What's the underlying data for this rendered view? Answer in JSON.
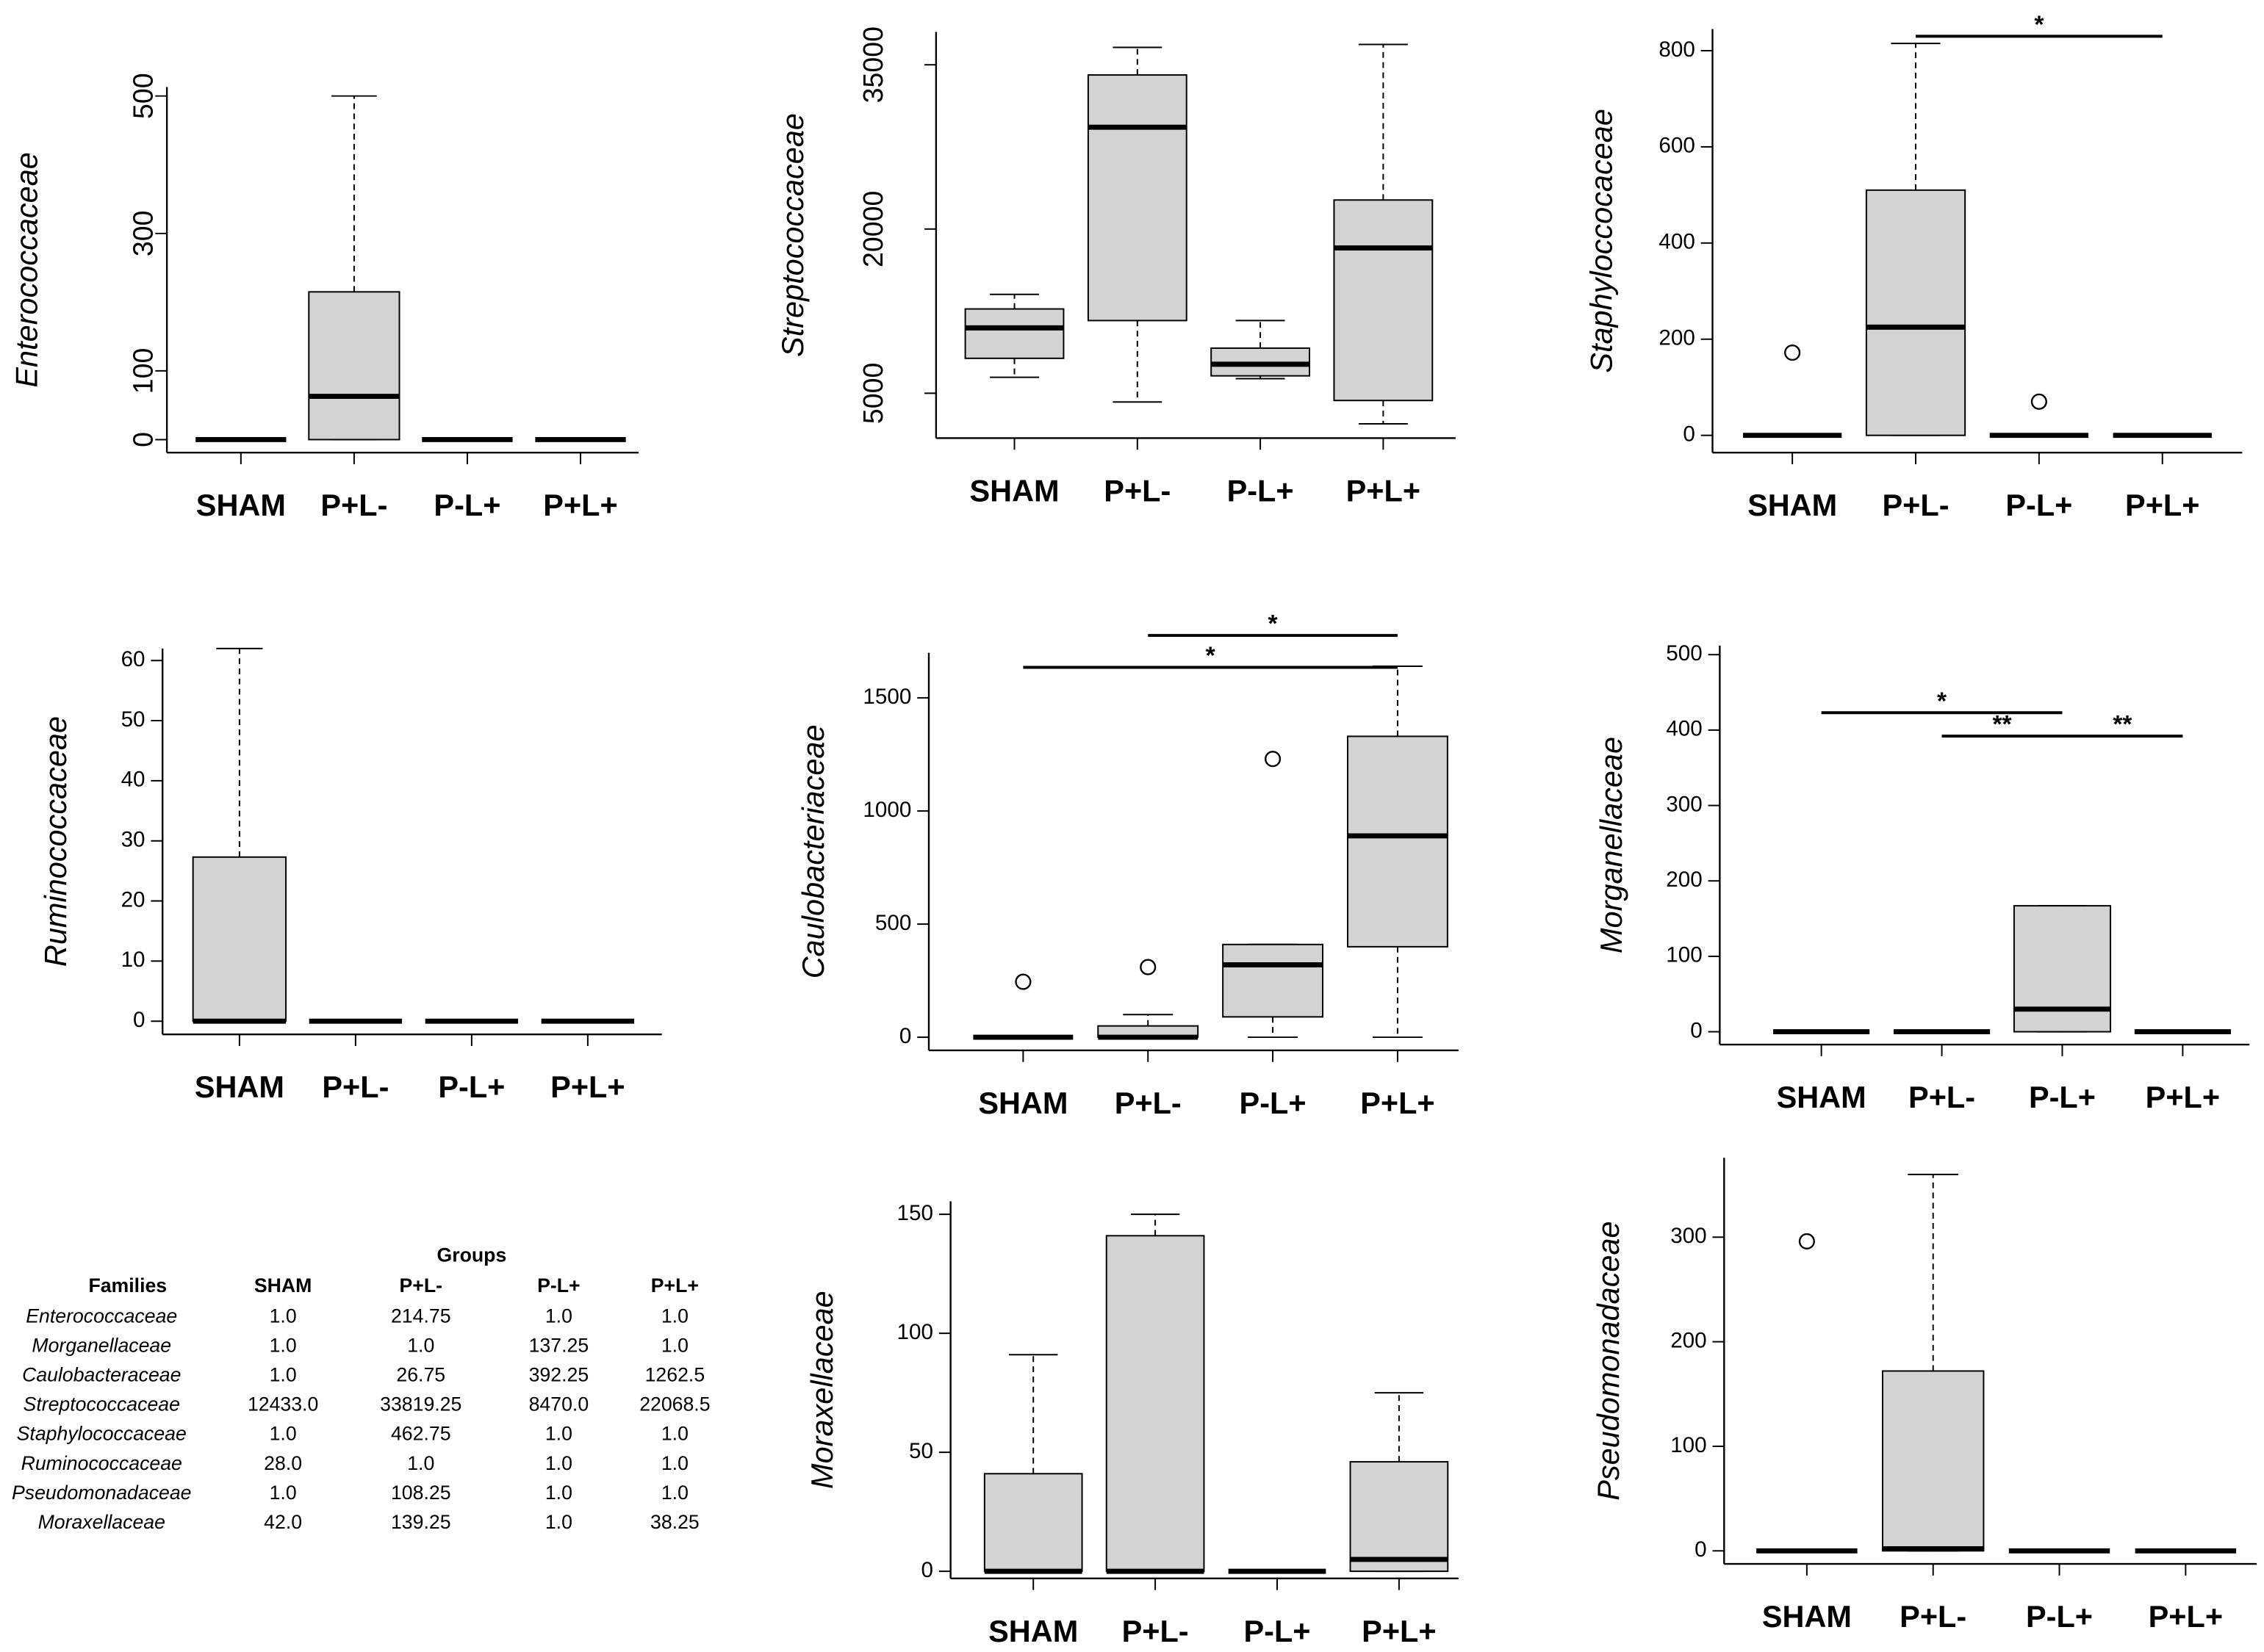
{
  "chart_data": [
    {
      "type": "box",
      "ylabel": "Enterococcaceae",
      "categories": [
        "SHAM",
        "P+L-",
        "P-L+",
        "P+L+"
      ],
      "ylim": [
        -19,
        513
      ],
      "yticks": [
        0,
        100,
        300,
        500
      ],
      "boxes": [
        {
          "min": 0,
          "q1": 0,
          "median": 0,
          "q3": 0,
          "max": 0,
          "outliers": []
        },
        {
          "min": 0,
          "q1": 0,
          "median": 63,
          "q3": 215,
          "max": 500,
          "outliers": []
        },
        {
          "min": 0,
          "q1": 0,
          "median": 0,
          "q3": 0,
          "max": 0,
          "outliers": []
        },
        {
          "min": 0,
          "q1": 0,
          "median": 0,
          "q3": 0,
          "max": 0,
          "outliers": []
        }
      ],
      "annotations": []
    },
    {
      "type": "box",
      "ylabel": "Streptococcaceae",
      "categories": [
        "SHAM",
        "P+L-",
        "P-L+",
        "P+L+"
      ],
      "ylim": [
        900,
        38000
      ],
      "yticks": [
        5000,
        20000,
        35000
      ],
      "boxes": [
        {
          "min": 6460,
          "q1": 8190,
          "median": 10970,
          "q3": 12700,
          "max": 14030,
          "outliers": []
        },
        {
          "min": 4200,
          "q1": 11640,
          "median": 29300,
          "q3": 34070,
          "max": 36590,
          "outliers": []
        },
        {
          "min": 6330,
          "q1": 6590,
          "median": 7650,
          "q3": 9120,
          "max": 11640,
          "outliers": []
        },
        {
          "min": 2210,
          "q1": 4340,
          "median": 18270,
          "q3": 22650,
          "max": 36860,
          "outliers": []
        }
      ],
      "annotations": []
    },
    {
      "type": "box",
      "ylabel": "Staphyloccocaceae",
      "categories": [
        "SHAM",
        "P+L-",
        "P-L+",
        "P+L+"
      ],
      "ylim": [
        -36,
        845
      ],
      "yticks": [
        0,
        200,
        400,
        600,
        800
      ],
      "boxes": [
        {
          "min": 0,
          "q1": 0,
          "median": 0,
          "q3": 0,
          "max": 0,
          "outliers": [
            172
          ]
        },
        {
          "min": 0,
          "q1": 0,
          "median": 225,
          "q3": 510,
          "max": 815,
          "outliers": []
        },
        {
          "min": 0,
          "q1": 0,
          "median": 0,
          "q3": 0,
          "max": 0,
          "outliers": [
            70
          ]
        },
        {
          "min": 0,
          "q1": 0,
          "median": 0,
          "q3": 0,
          "max": 0,
          "outliers": []
        }
      ],
      "annotations": [
        {
          "label": "*",
          "from": 1,
          "to": 3,
          "y": 830
        }
      ]
    },
    {
      "type": "box",
      "ylabel": "Ruminococcaceae",
      "categories": [
        "SHAM",
        "P+L-",
        "P-L+",
        "P+L+"
      ],
      "ylim": [
        -2.2,
        62
      ],
      "yticks": [
        0,
        10,
        20,
        30,
        40,
        50,
        60
      ],
      "boxes": [
        {
          "min": 0,
          "q1": 0,
          "median": 0,
          "q3": 27.3,
          "max": 62,
          "outliers": []
        },
        {
          "min": 0,
          "q1": 0,
          "median": 0,
          "q3": 0,
          "max": 0,
          "outliers": []
        },
        {
          "min": 0,
          "q1": 0,
          "median": 0,
          "q3": 0,
          "max": 0,
          "outliers": []
        },
        {
          "min": 0,
          "q1": 0,
          "median": 0,
          "q3": 0,
          "max": 0,
          "outliers": []
        }
      ],
      "annotations": []
    },
    {
      "type": "box",
      "ylabel": "Caulobacteriaceae",
      "categories": [
        "SHAM",
        "P+L-",
        "P-L+",
        "P+L+"
      ],
      "ylim": [
        -58,
        1699
      ],
      "yticks": [
        0,
        500,
        1000,
        1500
      ],
      "boxes": [
        {
          "min": 0,
          "q1": 0,
          "median": 0,
          "q3": 0,
          "max": 0,
          "outliers": [
            245
          ]
        },
        {
          "min": 0,
          "q1": 0,
          "median": 0,
          "q3": 50,
          "max": 100,
          "outliers": [
            310
          ]
        },
        {
          "min": 0,
          "q1": 90,
          "median": 320,
          "q3": 410,
          "max": 410,
          "outliers": [
            1230
          ]
        },
        {
          "min": 0,
          "q1": 400,
          "median": 890,
          "q3": 1330,
          "max": 1640,
          "outliers": []
        }
      ],
      "annotations": [
        {
          "label": "*",
          "from": 1,
          "to": 3,
          "y": 1776
        },
        {
          "label": "*",
          "from": 0,
          "to": 3,
          "y": 1635
        }
      ]
    },
    {
      "type": "box",
      "ylabel": "Morganellaceae",
      "categories": [
        "SHAM",
        "P+L-",
        "P-L+",
        "P+L+"
      ],
      "ylim": [
        -17,
        512
      ],
      "yticks": [
        0,
        100,
        200,
        300,
        400,
        500
      ],
      "boxes": [
        {
          "min": 0,
          "q1": 0,
          "median": 0,
          "q3": 0,
          "max": 0,
          "outliers": []
        },
        {
          "min": 0,
          "q1": 0,
          "median": 0,
          "q3": 0,
          "max": 0,
          "outliers": []
        },
        {
          "min": 0,
          "q1": 0,
          "median": 30,
          "q3": 167,
          "max": 167,
          "outliers": []
        },
        {
          "min": 0,
          "q1": 0,
          "median": 0,
          "q3": 0,
          "max": 0,
          "outliers": []
        }
      ],
      "annotations": [
        {
          "label": "*",
          "from": 0,
          "to": 2,
          "y": 423
        },
        {
          "label": "**",
          "from": 1,
          "to": 2,
          "y": 392
        },
        {
          "label": "**",
          "from": 2,
          "to": 3,
          "y": 392
        }
      ]
    },
    {
      "type": "box",
      "ylabel": "Moraxellaceae",
      "categories": [
        "SHAM",
        "P+L-",
        "P-L+",
        "P+L+"
      ],
      "ylim": [
        -3,
        155.5
      ],
      "yticks": [
        0,
        50,
        100,
        150
      ],
      "boxes": [
        {
          "min": 0,
          "q1": 0,
          "median": 0,
          "q3": 41,
          "max": 91,
          "outliers": []
        },
        {
          "min": 0,
          "q1": 0,
          "median": 0,
          "q3": 141,
          "max": 150,
          "outliers": []
        },
        {
          "min": 0,
          "q1": 0,
          "median": 0,
          "q3": 0,
          "max": 0,
          "outliers": []
        },
        {
          "min": 0,
          "q1": 0,
          "median": 5,
          "q3": 46,
          "max": 75,
          "outliers": []
        }
      ],
      "annotations": []
    },
    {
      "type": "box",
      "ylabel": "Pseudomonadaceae",
      "categories": [
        "SHAM",
        "P+L-",
        "P-L+",
        "P+L+"
      ],
      "ylim": [
        -12.5,
        376
      ],
      "yticks": [
        0,
        100,
        200,
        300
      ],
      "boxes": [
        {
          "min": 0,
          "q1": 0,
          "median": 0,
          "q3": 0,
          "max": 0,
          "outliers": [
            296
          ]
        },
        {
          "min": 0,
          "q1": 0,
          "median": 2,
          "q3": 172,
          "max": 360,
          "outliers": []
        },
        {
          "min": 0,
          "q1": 0,
          "median": 0,
          "q3": 0,
          "max": 0,
          "outliers": []
        },
        {
          "min": 0,
          "q1": 0,
          "median": 0,
          "q3": 0,
          "max": 0,
          "outliers": []
        }
      ],
      "annotations": []
    }
  ],
  "table": {
    "title": "Groups",
    "header": [
      "Families",
      "SHAM",
      "P+L-",
      "P-L+",
      "P+L+"
    ],
    "rows": [
      [
        "Enterococcaceae",
        "1.0",
        "214.75",
        "1.0",
        "1.0"
      ],
      [
        "Morganellaceae",
        "1.0",
        "1.0",
        "137.25",
        "1.0"
      ],
      [
        "Caulobacteraceae",
        "1.0",
        "26.75",
        "392.25",
        "1262.5"
      ],
      [
        "Streptococcaceae",
        "12433.0",
        "33819.25",
        "8470.0",
        "22068.5"
      ],
      [
        "Staphylococcaceae",
        "1.0",
        "462.75",
        "1.0",
        "1.0"
      ],
      [
        "Ruminococcaceae",
        "28.0",
        "1.0",
        "1.0",
        "1.0"
      ],
      [
        "Pseudomonadaceae",
        "1.0",
        "108.25",
        "1.0",
        "1.0"
      ],
      [
        "Moraxellaceae",
        "42.0",
        "139.25",
        "1.0",
        "38.25"
      ]
    ]
  }
}
